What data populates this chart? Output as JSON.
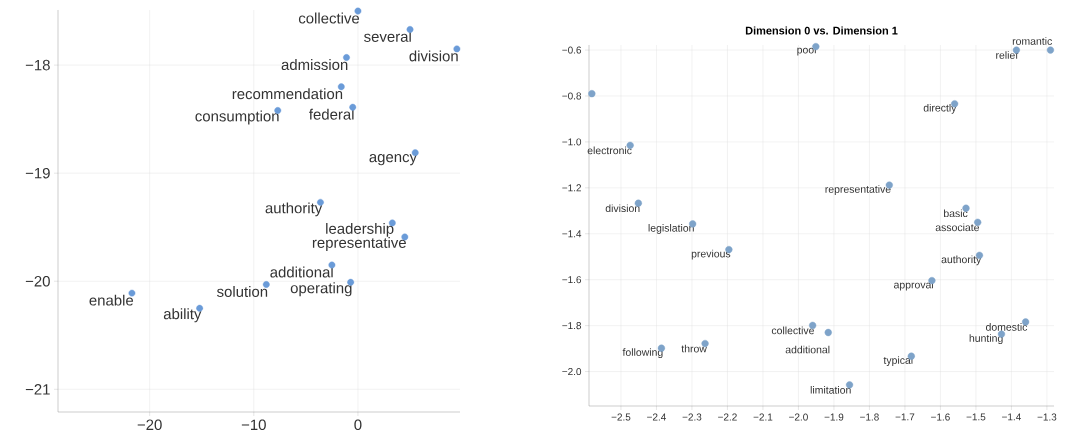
{
  "chart_data": [
    {
      "type": "scatter",
      "color": "#6a9bd8",
      "grid": true,
      "x": [
        0.0,
        5.0,
        9.5,
        -1.1,
        -1.6,
        -0.5,
        -7.7,
        5.5,
        -3.6,
        3.3,
        4.5,
        -2.5,
        -0.7,
        -8.8,
        -21.7,
        -15.2
      ],
      "values": [
        -17.5,
        -17.67,
        -17.85,
        -17.93,
        -18.2,
        -18.39,
        -18.42,
        -18.81,
        -19.27,
        -19.46,
        -19.59,
        -19.85,
        -20.01,
        -20.03,
        -20.11,
        -20.25
      ],
      "annotations": [
        {
          "text": "collective",
          "x": 0.0,
          "y": -17.5
        },
        {
          "text": "several",
          "x": 5.0,
          "y": -17.67
        },
        {
          "text": "division",
          "x": 9.5,
          "y": -17.85
        },
        {
          "text": "admission",
          "x": -1.1,
          "y": -17.93
        },
        {
          "text": "recommendation",
          "x": -1.6,
          "y": -18.2
        },
        {
          "text": "federal",
          "x": -0.5,
          "y": -18.39
        },
        {
          "text": "consumption",
          "x": -7.7,
          "y": -18.42
        },
        {
          "text": "agency",
          "x": 5.5,
          "y": -18.81
        },
        {
          "text": "authority",
          "x": -3.6,
          "y": -19.27
        },
        {
          "text": "leadership",
          "x": 3.3,
          "y": -19.46
        },
        {
          "text": "representative",
          "x": 4.5,
          "y": -19.59
        },
        {
          "text": "additional",
          "x": -2.5,
          "y": -19.85
        },
        {
          "text": "operating",
          "x": -0.7,
          "y": -20.01
        },
        {
          "text": "solution",
          "x": -8.8,
          "y": -20.03
        },
        {
          "text": "enable",
          "x": -21.7,
          "y": -20.11
        },
        {
          "text": "ability",
          "x": -15.2,
          "y": -20.25
        }
      ],
      "xlim": [
        -28.8,
        9.8
      ],
      "ylim": [
        -21.21,
        -17.49
      ],
      "xticks": [
        {
          "value": -20,
          "label": "−20"
        },
        {
          "value": -10,
          "label": "−10"
        },
        {
          "value": 0,
          "label": "0"
        }
      ],
      "yticks": [
        {
          "value": -18,
          "label": "−18"
        },
        {
          "value": -19,
          "label": "−19"
        },
        {
          "value": -20,
          "label": "−20"
        },
        {
          "value": -21,
          "label": "−21"
        }
      ]
    },
    {
      "type": "scatter",
      "title": "Dimension 0 vs. Dimension 1",
      "color": "#7ea3c9",
      "grid": true,
      "x": [
        -2.582,
        -1.951,
        -1.386,
        -1.29,
        -1.56,
        -2.474,
        -1.744,
        -2.451,
        -1.528,
        -1.495,
        -2.298,
        -2.196,
        -1.49,
        -1.624,
        -1.36,
        -1.96,
        -1.916,
        -1.428,
        -2.263,
        -2.386,
        -1.682,
        -1.856
      ],
      "values": [
        -0.79,
        -0.585,
        -0.6,
        -0.6,
        -0.834,
        -1.015,
        -1.188,
        -1.267,
        -1.289,
        -1.35,
        -1.357,
        -1.469,
        -1.494,
        -1.604,
        -1.784,
        -1.799,
        -1.83,
        -1.837,
        -1.878,
        -1.898,
        -1.933,
        -2.058
      ],
      "annotations": [
        {
          "text": "poor",
          "x": -1.951,
          "y": -0.585
        },
        {
          "text": "relief",
          "x": -1.386,
          "y": -0.6
        },
        {
          "text": "romantic",
          "x": -1.29,
          "y": -0.6
        },
        {
          "text": "directly",
          "x": -1.56,
          "y": -0.834
        },
        {
          "text": "electronic",
          "x": -2.474,
          "y": -1.015
        },
        {
          "text": "representative",
          "x": -1.744,
          "y": -1.188
        },
        {
          "text": "division",
          "x": -2.451,
          "y": -1.267
        },
        {
          "text": "basic",
          "x": -1.528,
          "y": -1.289
        },
        {
          "text": "associate",
          "x": -1.495,
          "y": -1.35
        },
        {
          "text": "legislation",
          "x": -2.298,
          "y": -1.357
        },
        {
          "text": "previous",
          "x": -2.196,
          "y": -1.469
        },
        {
          "text": "authority",
          "x": -1.49,
          "y": -1.494
        },
        {
          "text": "approval",
          "x": -1.624,
          "y": -1.604
        },
        {
          "text": "domestic",
          "x": -1.36,
          "y": -1.784
        },
        {
          "text": "collective",
          "x": -1.96,
          "y": -1.799
        },
        {
          "text": "additional",
          "x": -1.916,
          "y": -1.83
        },
        {
          "text": "hunting",
          "x": -1.428,
          "y": -1.837
        },
        {
          "text": "throw",
          "x": -2.263,
          "y": -1.878
        },
        {
          "text": "following",
          "x": -2.386,
          "y": -1.898
        },
        {
          "text": "typical",
          "x": -1.682,
          "y": -1.933
        },
        {
          "text": "limitation",
          "x": -1.856,
          "y": -2.058
        }
      ],
      "xlim": [
        -2.59,
        -1.28
      ],
      "ylim": [
        -2.15,
        -0.578
      ],
      "xticks": [
        {
          "value": -2.5,
          "label": "−2.5"
        },
        {
          "value": -2.4,
          "label": "−2.4"
        },
        {
          "value": -2.3,
          "label": "−2.3"
        },
        {
          "value": -2.2,
          "label": "−2.2"
        },
        {
          "value": -2.1,
          "label": "−2.1"
        },
        {
          "value": -2.0,
          "label": "−2.0"
        },
        {
          "value": -1.9,
          "label": "−1.9"
        },
        {
          "value": -1.8,
          "label": "−1.8"
        },
        {
          "value": -1.7,
          "label": "−1.7"
        },
        {
          "value": -1.6,
          "label": "−1.6"
        },
        {
          "value": -1.5,
          "label": "−1.5"
        },
        {
          "value": -1.4,
          "label": "−1.4"
        },
        {
          "value": -1.3,
          "label": "−1.3"
        }
      ],
      "yticks": [
        {
          "value": -0.6,
          "label": "−0.6"
        },
        {
          "value": -0.8,
          "label": "−0.8"
        },
        {
          "value": -1.0,
          "label": "−1.0"
        },
        {
          "value": -1.2,
          "label": "−1.2"
        },
        {
          "value": -1.4,
          "label": "−1.4"
        },
        {
          "value": -1.6,
          "label": "−1.6"
        },
        {
          "value": -1.8,
          "label": "−1.8"
        },
        {
          "value": -2.0,
          "label": "−2.0"
        }
      ]
    }
  ]
}
